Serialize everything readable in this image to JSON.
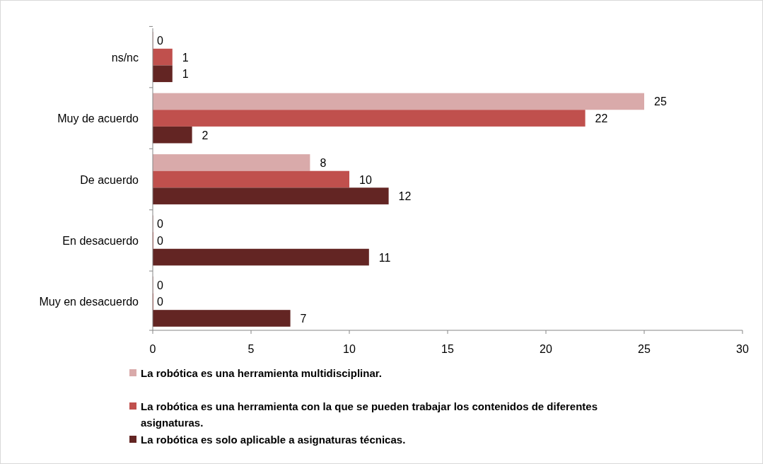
{
  "chart_data": {
    "type": "bar",
    "orientation": "horizontal",
    "categories": [
      "ns/nc",
      "Muy de acuerdo",
      "De acuerdo",
      "En desacuerdo",
      "Muy en desacuerdo"
    ],
    "series": [
      {
        "name": "La robótica es una herramienta multidisciplinar.",
        "color": "#d9aaaa",
        "values": [
          0,
          25,
          8,
          0,
          0
        ]
      },
      {
        "name": "La robótica es una herramienta con la que se pueden trabajar los contenidos de diferentes asignaturas.",
        "color": "#c0504d",
        "values": [
          1,
          22,
          10,
          0,
          0
        ]
      },
      {
        "name": "La robótica es solo aplicable a asignaturas técnicas.",
        "color": "#632523",
        "values": [
          1,
          2,
          12,
          11,
          7
        ]
      }
    ],
    "xlim": [
      0,
      30
    ],
    "xticks": [
      0,
      5,
      10,
      15,
      20,
      25,
      30
    ],
    "grid": false,
    "legend": "bottom",
    "data_labels": true
  }
}
